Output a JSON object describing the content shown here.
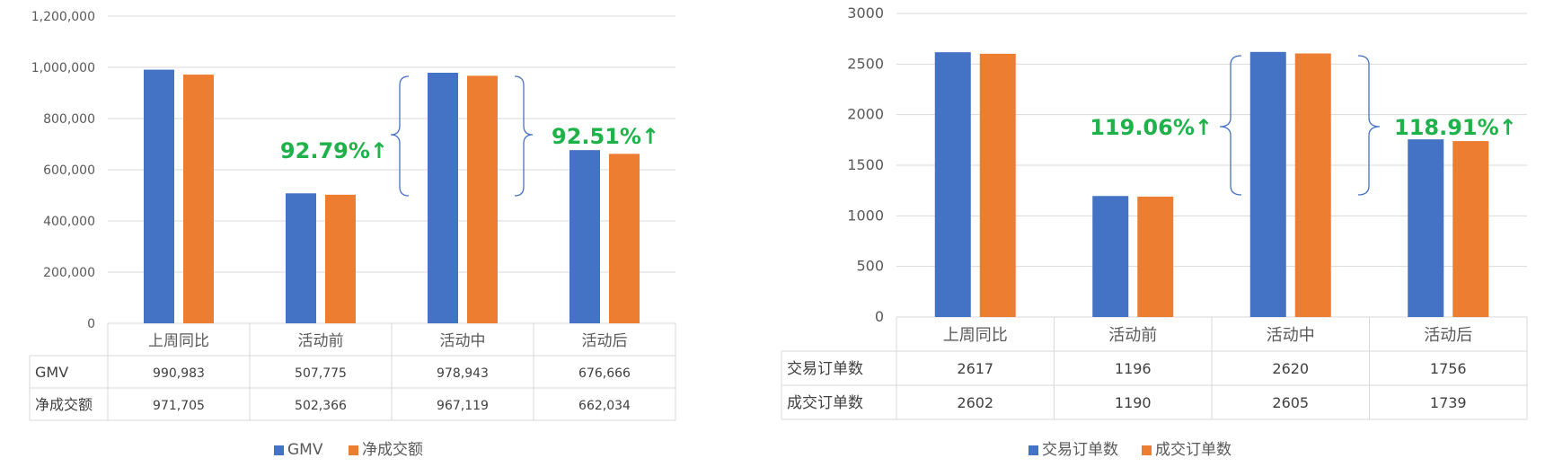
{
  "chart_data": [
    {
      "type": "bar",
      "categories": [
        "上周同比",
        "活动前",
        "活动中",
        "活动后"
      ],
      "series": [
        {
          "name": "GMV",
          "values": [
            990983,
            507775,
            978943,
            676666
          ],
          "labels": [
            "990,983",
            "507,775",
            "978,943",
            "676,666"
          ]
        },
        {
          "name": "净成交额",
          "values": [
            971705,
            502366,
            967119,
            662034
          ],
          "labels": [
            "971,705",
            "502,366",
            "967,119",
            "662,034"
          ]
        }
      ],
      "ylim": [
        0,
        1200000
      ],
      "yticks": [
        "0",
        "200,000",
        "400,000",
        "600,000",
        "800,000",
        "1,000,000",
        "1,200,000"
      ],
      "grid": true,
      "legend_position": "bottom",
      "data_table": true,
      "annotations": [
        "92.79%↑",
        "92.51%↑"
      ]
    },
    {
      "type": "bar",
      "categories": [
        "上周同比",
        "活动前",
        "活动中",
        "活动后"
      ],
      "series": [
        {
          "name": "交易订单数",
          "values": [
            2617,
            1196,
            2620,
            1756
          ],
          "labels": [
            "2617",
            "1196",
            "2620",
            "1756"
          ]
        },
        {
          "name": "成交订单数",
          "values": [
            2602,
            1190,
            2605,
            1739
          ],
          "labels": [
            "2602",
            "1190",
            "2605",
            "1739"
          ]
        }
      ],
      "ylim": [
        0,
        3000
      ],
      "yticks": [
        "0",
        "500",
        "1000",
        "1500",
        "2000",
        "2500",
        "3000"
      ],
      "grid": true,
      "legend_position": "bottom",
      "data_table": true,
      "annotations": [
        "119.06%↑",
        "118.91%↑"
      ]
    }
  ],
  "colors": {
    "series1": "#4472C4",
    "series2": "#ED7D31",
    "annotation": "#1FB24A",
    "bracket": "#4472C4",
    "grid": "#D9D9D9",
    "axis_text": "#595959"
  }
}
